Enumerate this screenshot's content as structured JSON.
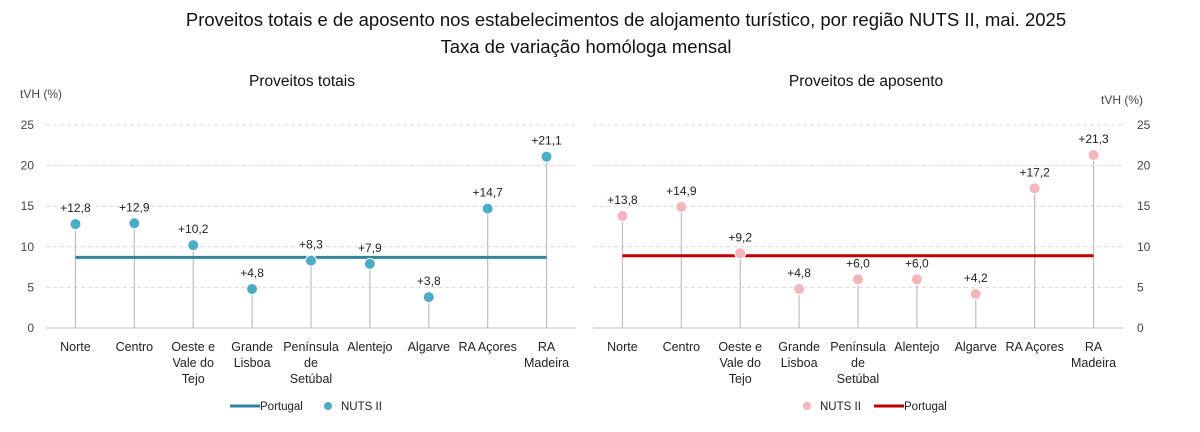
{
  "title": "Proveitos totais e de aposento nos estabelecimentos de alojamento turístico, por região NUTS II, mai. 2025",
  "subtitle": "Taxa de variação homóloga mensal",
  "chart_data": [
    {
      "type": "scatter",
      "title": "Proveitos totais",
      "ylabel": "tVH (%)",
      "ylim": [
        0,
        25
      ],
      "yticks": [
        "0",
        "5",
        "10",
        "15",
        "20",
        "25"
      ],
      "grid": true,
      "categories": [
        [
          "Norte"
        ],
        [
          "Centro"
        ],
        [
          "Oeste e",
          "Vale do",
          "Tejo"
        ],
        [
          "Grande",
          "Lisboa"
        ],
        [
          "Península",
          "de",
          "Setúbal"
        ],
        [
          "Alentejo"
        ],
        [
          "Algarve"
        ],
        [
          "RA Açores"
        ],
        [
          "RA",
          "Madeira"
        ]
      ],
      "series": [
        {
          "name": "NUTS II",
          "color": "#4bacc6",
          "values": [
            12.8,
            12.9,
            10.2,
            4.8,
            8.3,
            7.9,
            3.8,
            14.7,
            21.1
          ],
          "labels": [
            "+12,8",
            "+12,9",
            "+10,2",
            "+4,8",
            "+8,3",
            "+7,9",
            "+3,8",
            "+14,7",
            "+21,1"
          ]
        }
      ],
      "reference_line": {
        "name": "Portugal",
        "value": 8.7,
        "color": "#31849b"
      },
      "legend": [
        "Portugal",
        "NUTS II"
      ],
      "legend_position": "bottom"
    },
    {
      "type": "scatter",
      "title": "Proveitos de aposento",
      "ylabel": "tVH (%)",
      "ylim": [
        0,
        25
      ],
      "yticks": [
        "0",
        "5",
        "10",
        "15",
        "20",
        "25"
      ],
      "grid": true,
      "categories": [
        [
          "Norte"
        ],
        [
          "Centro"
        ],
        [
          "Oeste e",
          "Vale do",
          "Tejo"
        ],
        [
          "Grande",
          "Lisboa"
        ],
        [
          "Península",
          "de",
          "Setúbal"
        ],
        [
          "Alentejo"
        ],
        [
          "Algarve"
        ],
        [
          "RA Açores"
        ],
        [
          "RA",
          "Madeira"
        ]
      ],
      "series": [
        {
          "name": "NUTS II",
          "color": "#f4b6bb",
          "values": [
            13.8,
            14.9,
            9.2,
            4.8,
            6.0,
            6.0,
            4.2,
            17.2,
            21.3
          ],
          "labels": [
            "+13,8",
            "+14,9",
            "+9,2",
            "+4,8",
            "+6,0",
            "+6,0",
            "+4,2",
            "+17,2",
            "+21,3"
          ]
        }
      ],
      "reference_line": {
        "name": "Portugal",
        "value": 8.9,
        "color": "#c00000"
      },
      "legend": [
        "NUTS II",
        "Portugal"
      ],
      "legend_position": "bottom"
    }
  ]
}
